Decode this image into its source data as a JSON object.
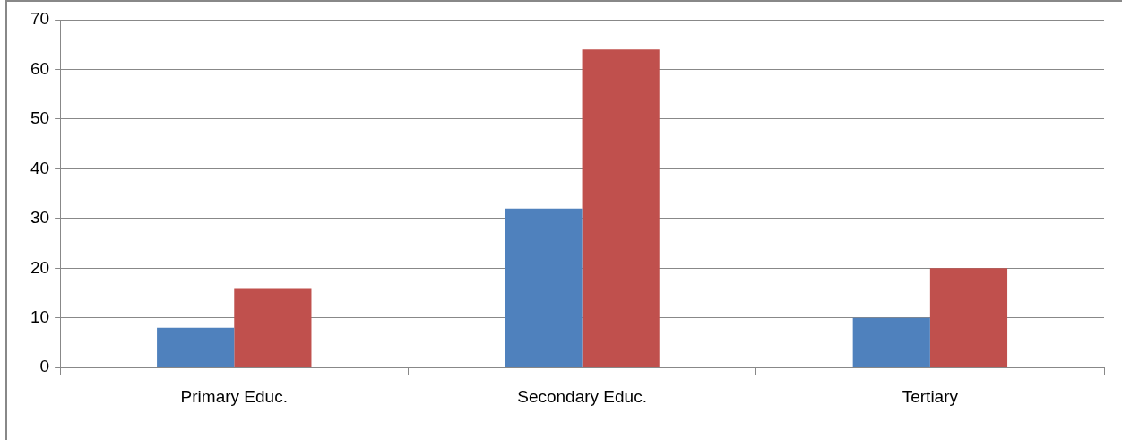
{
  "chart_data": {
    "type": "bar",
    "categories": [
      "Primary Educ.",
      "Secondary Educ.",
      "Tertiary"
    ],
    "series": [
      {
        "color": "#4f81bd",
        "values": [
          8,
          32,
          10
        ]
      },
      {
        "color": "#c0504d",
        "values": [
          16,
          64,
          20
        ]
      }
    ],
    "ylim": [
      0,
      70
    ],
    "yticks": [
      0,
      10,
      20,
      30,
      40,
      50,
      60,
      70
    ],
    "grid": "y",
    "legend": false
  }
}
